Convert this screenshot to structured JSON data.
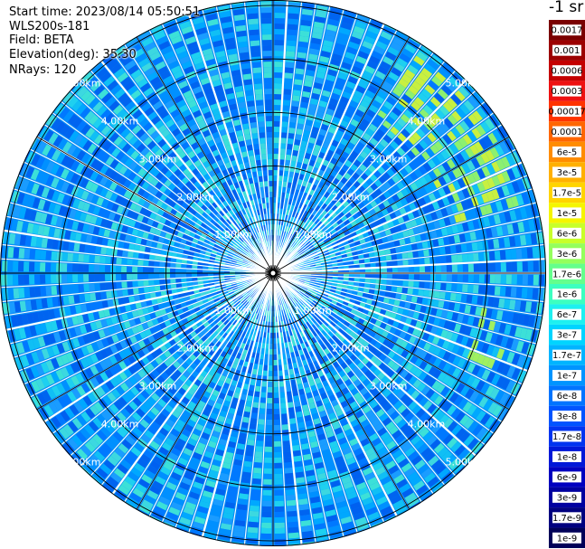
{
  "info": {
    "start_time": "Start time: 2023/08/14 05:50:51",
    "instrument": "WLS200s-181",
    "field": "Field: BETA",
    "elevation": "Elevation(deg): 35.30",
    "nrays": "NRays: 120"
  },
  "unit_label": "-1 sr",
  "range_rings": [
    {
      "label": "1.00km",
      "value_km": 1
    },
    {
      "label": "2.00km",
      "value_km": 2
    },
    {
      "label": "3.00km",
      "value_km": 3
    },
    {
      "label": "4.00km",
      "value_km": 4
    },
    {
      "label": "5.00km",
      "value_km": 5
    }
  ],
  "max_range_km": 5.1,
  "n_rays": 120,
  "colorbar": {
    "labels": [
      "0.0017",
      "0.001",
      "0.0006",
      "0.0003",
      "0.00017",
      "0.0001",
      "6e-5",
      "3e-5",
      "1.7e-5",
      "1e-5",
      "6e-6",
      "3e-6",
      "1.7e-6",
      "1e-6",
      "6e-7",
      "3e-7",
      "1.7e-7",
      "1e-7",
      "6e-8",
      "3e-8",
      "1.7e-8",
      "1e-8",
      "6e-9",
      "3e-9",
      "1.7e-9",
      "1e-9"
    ],
    "colors": [
      "#7a0000",
      "#9c0000",
      "#c40000",
      "#ee1111",
      "#ff3300",
      "#ff6600",
      "#ff8c00",
      "#ffb000",
      "#ffd400",
      "#f5f500",
      "#c8ff2a",
      "#94ff5c",
      "#64ff8c",
      "#3cffc0",
      "#1ef0f0",
      "#00d4ff",
      "#00b4ff",
      "#0094ff",
      "#0074ff",
      "#0054ff",
      "#0034f0",
      "#0018d8",
      "#0000c0",
      "#0000a0",
      "#000080",
      "#000058"
    ]
  }
}
